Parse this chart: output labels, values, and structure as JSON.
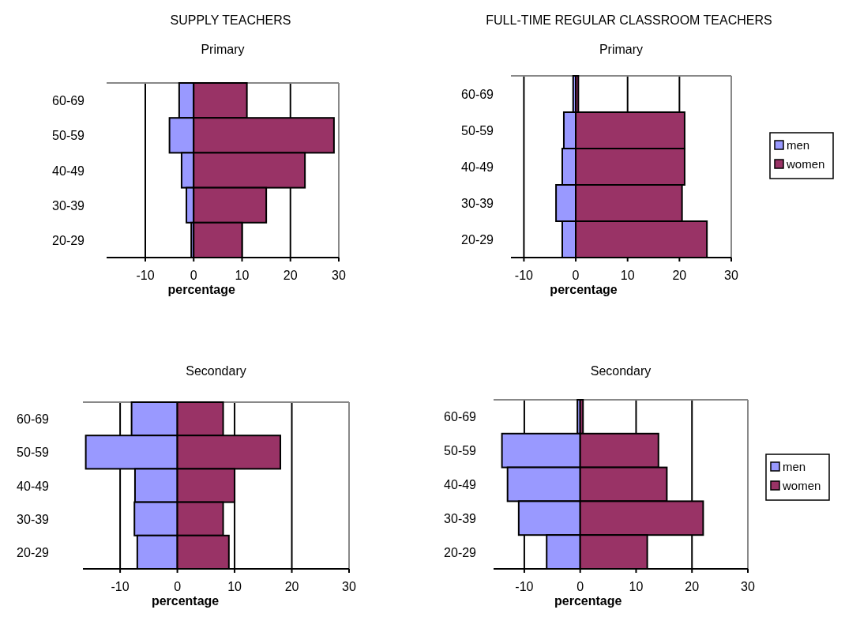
{
  "chart_data": [
    {
      "type": "bar",
      "orientation": "horizontal",
      "stacked": true,
      "title": "SUPPLY TEACHERS",
      "subtitle": "Primary",
      "xlabel": "percentage",
      "categories": [
        "60-69",
        "50-59",
        "40-49",
        "30-39",
        "20-29"
      ],
      "series": [
        {
          "color": "#9999ff",
          "values": [
            -3,
            -5,
            -2.5,
            -1.5,
            -0.5
          ]
        },
        {
          "color": "#993366",
          "values": [
            11,
            29,
            23,
            15,
            10
          ]
        }
      ],
      "xlim": [
        -18,
        30
      ],
      "xticks": [
        -10,
        0,
        10,
        20,
        30
      ],
      "grid": "x"
    },
    {
      "type": "bar",
      "orientation": "horizontal",
      "stacked": true,
      "title": "FULL-TIME REGULAR CLASSROOM TEACHERS",
      "subtitle": "Primary",
      "xlabel": "percentage",
      "categories": [
        "60-69",
        "50-59",
        "40-49",
        "30-39",
        "20-29"
      ],
      "series": [
        {
          "name": "men",
          "color": "#9999ff",
          "values": [
            -0.5,
            -2.3,
            -2.6,
            -3.8,
            -2.6
          ]
        },
        {
          "name": "women",
          "color": "#993366",
          "values": [
            0.5,
            21,
            21,
            20.5,
            25.3
          ]
        }
      ],
      "xlim": [
        -12.5,
        30
      ],
      "xticks": [
        -10,
        0,
        10,
        20,
        30
      ],
      "grid": "x",
      "legend": "right"
    },
    {
      "type": "bar",
      "orientation": "horizontal",
      "stacked": true,
      "title": "Secondary",
      "xlabel": "percentage",
      "categories": [
        "60-69",
        "50-59",
        "40-49",
        "30-39",
        "20-29"
      ],
      "series": [
        {
          "color": "#9999ff",
          "values": [
            -8,
            -16,
            -7.4,
            -7.5,
            -7
          ]
        },
        {
          "color": "#993366",
          "values": [
            8,
            18,
            10,
            8,
            9
          ]
        }
      ],
      "xlim": [
        -16.5,
        30
      ],
      "xticks": [
        -10,
        0,
        10,
        20,
        30
      ],
      "grid": "x"
    },
    {
      "type": "bar",
      "orientation": "horizontal",
      "stacked": true,
      "title": "Secondary",
      "xlabel": "percentage",
      "categories": [
        "60-69",
        "50-59",
        "40-49",
        "30-39",
        "20-29"
      ],
      "series": [
        {
          "name": "men",
          "color": "#9999ff",
          "values": [
            -0.5,
            -14,
            -13,
            -11,
            -6
          ]
        },
        {
          "name": "women",
          "color": "#993366",
          "values": [
            0.5,
            14,
            15.5,
            22,
            12
          ]
        }
      ],
      "xlim": [
        -15.5,
        30
      ],
      "xticks": [
        -10,
        0,
        10,
        20,
        30
      ],
      "grid": "x",
      "legend": "right"
    }
  ]
}
